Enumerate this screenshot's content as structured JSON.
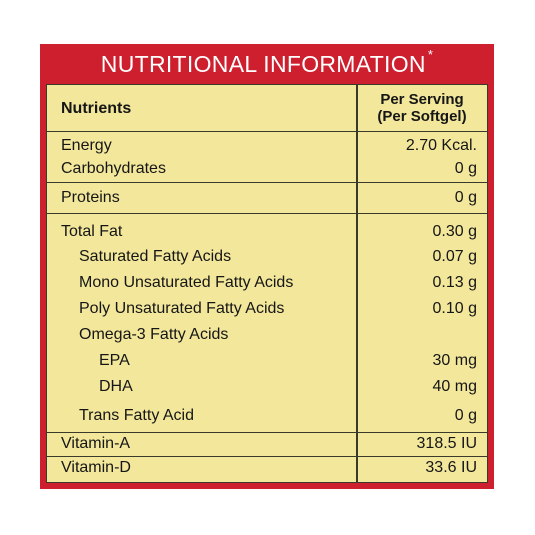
{
  "title": {
    "text": "NUTRITIONAL INFORMATION",
    "asterisk": "*"
  },
  "colors": {
    "banner": "#cd1f2d",
    "table_bg": "#f2e79a",
    "rule": "#3a3a2a"
  },
  "header": {
    "nutrients": "Nutrients",
    "per_serving_line1": "Per Serving",
    "per_serving_line2": "(Per Softgel)"
  },
  "rows": [
    {
      "name": "Energy",
      "value": "2.70 Kcal."
    },
    {
      "name": "Carbohydrates",
      "value": "0 g"
    },
    {
      "name": "Proteins",
      "value": "0 g"
    },
    {
      "name": "Total Fat",
      "value": "0.30 g"
    },
    {
      "name": "Saturated Fatty Acids",
      "value": "0.07 g"
    },
    {
      "name": "Mono Unsaturated Fatty Acids",
      "value": "0.13 g"
    },
    {
      "name": "Poly Unsaturated Fatty Acids",
      "value": "0.10 g"
    },
    {
      "name": "Omega-3 Fatty Acids",
      "value": ""
    },
    {
      "name": "EPA",
      "value": "30 mg"
    },
    {
      "name": "DHA",
      "value": "40 mg"
    },
    {
      "name": "Trans Fatty Acid",
      "value": "0 g"
    },
    {
      "name": "Vitamin-A",
      "value": "318.5 IU"
    },
    {
      "name": "Vitamin-D",
      "value": "33.6 IU"
    }
  ]
}
